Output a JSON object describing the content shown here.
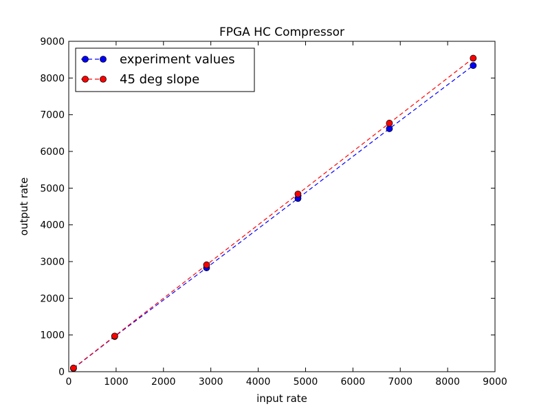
{
  "chart_data": {
    "type": "line",
    "title": "FPGA HC Compressor",
    "xlabel": "input rate",
    "ylabel": "output rate",
    "xlim": [
      0,
      9000
    ],
    "ylim": [
      0,
      9000
    ],
    "xticks": [
      0,
      1000,
      2000,
      3000,
      4000,
      5000,
      6000,
      7000,
      8000,
      9000
    ],
    "yticks": [
      0,
      1000,
      2000,
      3000,
      4000,
      5000,
      6000,
      7000,
      8000,
      9000
    ],
    "grid": false,
    "legend_position": "top-left",
    "series": [
      {
        "name": "experiment values",
        "color": "#0000ff",
        "line_style": "dashed",
        "marker": "circle",
        "x": [
          100,
          970,
          2910,
          4840,
          6770,
          8540
        ],
        "y": [
          90,
          960,
          2830,
          4720,
          6620,
          8340
        ]
      },
      {
        "name": "45 deg slope",
        "color": "#ff0000",
        "line_style": "dashed",
        "marker": "circle",
        "x": [
          100,
          970,
          2910,
          4840,
          6770,
          8540
        ],
        "y": [
          100,
          970,
          2910,
          4840,
          6770,
          8540
        ]
      }
    ]
  }
}
